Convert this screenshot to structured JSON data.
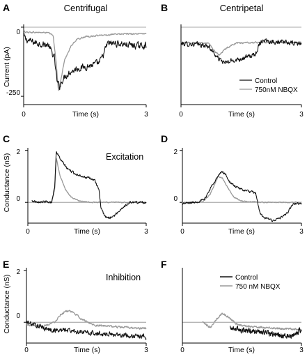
{
  "colors": {
    "control": "#111111",
    "nbqx": "#999999",
    "axis": "#000000",
    "zero_line": "#8a8a8a"
  },
  "panels": [
    {
      "id": "A",
      "title": "Centrifugal",
      "inset_label": "",
      "ylabel": "Current (pA)",
      "yticks": [
        "0",
        "-250"
      ],
      "xticks": [
        "0",
        "3"
      ],
      "xlabel": "Time (s)",
      "legend": []
    },
    {
      "id": "B",
      "title": "Centripetal",
      "inset_label": "",
      "ylabel": "",
      "yticks": [],
      "xticks": [
        "0",
        "3"
      ],
      "xlabel": "Time (s)",
      "legend": [
        "Control",
        "750nM NBQX"
      ]
    },
    {
      "id": "C",
      "title": "",
      "inset_label": "Excitation",
      "ylabel": "Conductance (nS)",
      "yticks": [
        "2",
        "0"
      ],
      "xticks": [
        "0",
        "3"
      ],
      "xlabel": "Time (s)",
      "legend": []
    },
    {
      "id": "D",
      "title": "",
      "inset_label": "",
      "ylabel": "",
      "yticks": [
        "2",
        "0"
      ],
      "xticks": [
        "0",
        "3"
      ],
      "xlabel": "Time (s)",
      "legend": []
    },
    {
      "id": "E",
      "title": "",
      "inset_label": "Inhibition",
      "ylabel": "Conductance (nS)",
      "yticks": [
        "2",
        "0"
      ],
      "xticks": [
        "0",
        "3"
      ],
      "xlabel": "Time (s)",
      "legend": []
    },
    {
      "id": "F",
      "title": "",
      "inset_label": "",
      "ylabel": "",
      "yticks": [],
      "xticks": [
        "0",
        "3"
      ],
      "xlabel": "Time (s)",
      "legend": [
        "Control",
        "750 nM NBQX"
      ]
    }
  ],
  "chart_data": [
    {
      "type": "line",
      "panel": "A",
      "ylim": [
        -280,
        10
      ],
      "xlim": [
        0,
        3
      ],
      "series": [
        {
          "name": "Control",
          "noise": 18,
          "x": [
            0,
            0.05,
            0.25,
            0.6,
            0.75,
            0.82,
            0.88,
            0.95,
            1.1,
            1.3,
            1.6,
            1.85,
            1.95,
            2.05,
            2.2,
            2.5,
            2.8,
            3.0
          ],
          "y": [
            -30,
            -45,
            -55,
            -65,
            -110,
            -200,
            -215,
            -190,
            -165,
            -150,
            -140,
            -130,
            -100,
            -60,
            -58,
            -62,
            -68,
            -65
          ]
        },
        {
          "name": "750nM NBQX",
          "noise": 4,
          "x": [
            0,
            0.05,
            0.6,
            0.72,
            0.8,
            0.85,
            0.9,
            1.0,
            1.15,
            1.3,
            1.5,
            2.0,
            2.5,
            3.0
          ],
          "y": [
            -12,
            -18,
            -20,
            -30,
            -130,
            -230,
            -200,
            -120,
            -70,
            -45,
            -35,
            -28,
            -24,
            -24
          ]
        }
      ]
    },
    {
      "type": "line",
      "panel": "B",
      "ylim": [
        -280,
        10
      ],
      "xlim": [
        0,
        3
      ],
      "series": [
        {
          "name": "Control",
          "noise": 13,
          "x": [
            0,
            0.4,
            0.7,
            0.9,
            1.1,
            1.3,
            1.6,
            1.85,
            1.95,
            2.05,
            2.2,
            2.5,
            3.0
          ],
          "y": [
            -60,
            -62,
            -70,
            -110,
            -130,
            -120,
            -110,
            -100,
            -60,
            -45,
            -50,
            -55,
            -60
          ]
        },
        {
          "name": "750nM NBQX",
          "noise": 4,
          "x": [
            0,
            0.7,
            0.85,
            0.95,
            1.1,
            1.25,
            1.4,
            2.0,
            2.5,
            3.0
          ],
          "y": [
            -55,
            -58,
            -90,
            -100,
            -80,
            -65,
            -58,
            -55,
            -55,
            -55
          ]
        }
      ]
    },
    {
      "type": "line",
      "panel": "C",
      "ylim": [
        -0.8,
        2.1
      ],
      "xlim": [
        0,
        3
      ],
      "series": [
        {
          "name": "Control",
          "noise": 0.07,
          "x": [
            0.1,
            0.6,
            0.68,
            0.72,
            0.85,
            1.0,
            1.2,
            1.5,
            1.7,
            1.8,
            1.85,
            1.95,
            2.05,
            2.2,
            2.4,
            2.6,
            3.0
          ],
          "y": [
            0.05,
            0,
            0.6,
            1.95,
            1.6,
            1.3,
            1.1,
            0.95,
            0.85,
            0.5,
            -0.2,
            -0.55,
            -0.6,
            -0.5,
            -0.2,
            0,
            0
          ]
        },
        {
          "name": "750 nM NBQX",
          "noise": 0.03,
          "x": [
            0.1,
            0.6,
            0.68,
            0.72,
            0.82,
            0.95,
            1.1,
            1.3,
            1.6,
            2.0,
            3.0
          ],
          "y": [
            0,
            0,
            0.5,
            1.7,
            1.0,
            0.5,
            0.2,
            0.05,
            0,
            0,
            0
          ]
        }
      ]
    },
    {
      "type": "line",
      "panel": "D",
      "ylim": [
        -0.8,
        2.1
      ],
      "xlim": [
        0,
        3
      ],
      "series": [
        {
          "name": "Control",
          "noise": 0.07,
          "x": [
            0,
            0.3,
            0.55,
            0.8,
            1.0,
            1.1,
            1.2,
            1.4,
            1.6,
            1.85,
            1.95,
            2.05,
            2.3,
            2.6,
            2.8,
            3.0
          ],
          "y": [
            -0.05,
            0,
            0.1,
            0.8,
            1.2,
            1.05,
            0.75,
            0.55,
            0.45,
            0.35,
            -0.4,
            -0.6,
            -0.7,
            -0.5,
            -0.05,
            -0.05
          ]
        },
        {
          "name": "750 nM NBQX",
          "noise": 0.03,
          "x": [
            0,
            0.5,
            0.7,
            0.9,
            1.0,
            1.15,
            1.3,
            1.5,
            2.0,
            3.0
          ],
          "y": [
            0,
            0,
            0.3,
            1.0,
            0.95,
            0.55,
            0.2,
            0.05,
            0,
            0
          ]
        }
      ]
    },
    {
      "type": "line",
      "panel": "E",
      "ylim": [
        -0.8,
        2.1
      ],
      "xlim": [
        0,
        3
      ],
      "series": [
        {
          "name": "Control",
          "noise": 0.15,
          "x": [
            0,
            0.3,
            0.6,
            1.0,
            1.5,
            2.0,
            2.5,
            3.0
          ],
          "y": [
            0,
            -0.15,
            -0.3,
            -0.3,
            -0.4,
            -0.45,
            -0.5,
            -0.55
          ]
        },
        {
          "name": "750 nM NBQX",
          "noise": 0.06,
          "x": [
            0,
            0.4,
            0.7,
            0.85,
            1.0,
            1.2,
            1.4,
            1.7,
            2.0,
            2.5,
            3.0
          ],
          "y": [
            -0.1,
            -0.15,
            0,
            0.3,
            0.45,
            0.35,
            0.1,
            -0.1,
            -0.15,
            -0.2,
            -0.25
          ]
        }
      ]
    },
    {
      "type": "line",
      "panel": "F",
      "ylim": [
        -0.8,
        2.1
      ],
      "xlim": [
        0,
        3
      ],
      "series": [
        {
          "name": "Control",
          "noise": 0.15,
          "x": [
            1.2,
            1.5,
            1.8,
            2.1,
            2.4,
            2.7,
            2.85,
            2.95,
            3.0
          ],
          "y": [
            -0.2,
            -0.3,
            -0.35,
            -0.4,
            -0.5,
            -0.55,
            -0.5,
            -0.3,
            -0.3
          ]
        },
        {
          "name": "750 nM NBQX",
          "noise": 0.06,
          "x": [
            0.5,
            0.7,
            0.85,
            1.0,
            1.2,
            1.4,
            1.7,
            2.0,
            2.5,
            2.8,
            3.0
          ],
          "y": [
            0,
            -0.2,
            0.1,
            0.35,
            0.15,
            -0.1,
            -0.15,
            -0.2,
            -0.25,
            -0.25,
            -0.3
          ]
        }
      ]
    }
  ]
}
